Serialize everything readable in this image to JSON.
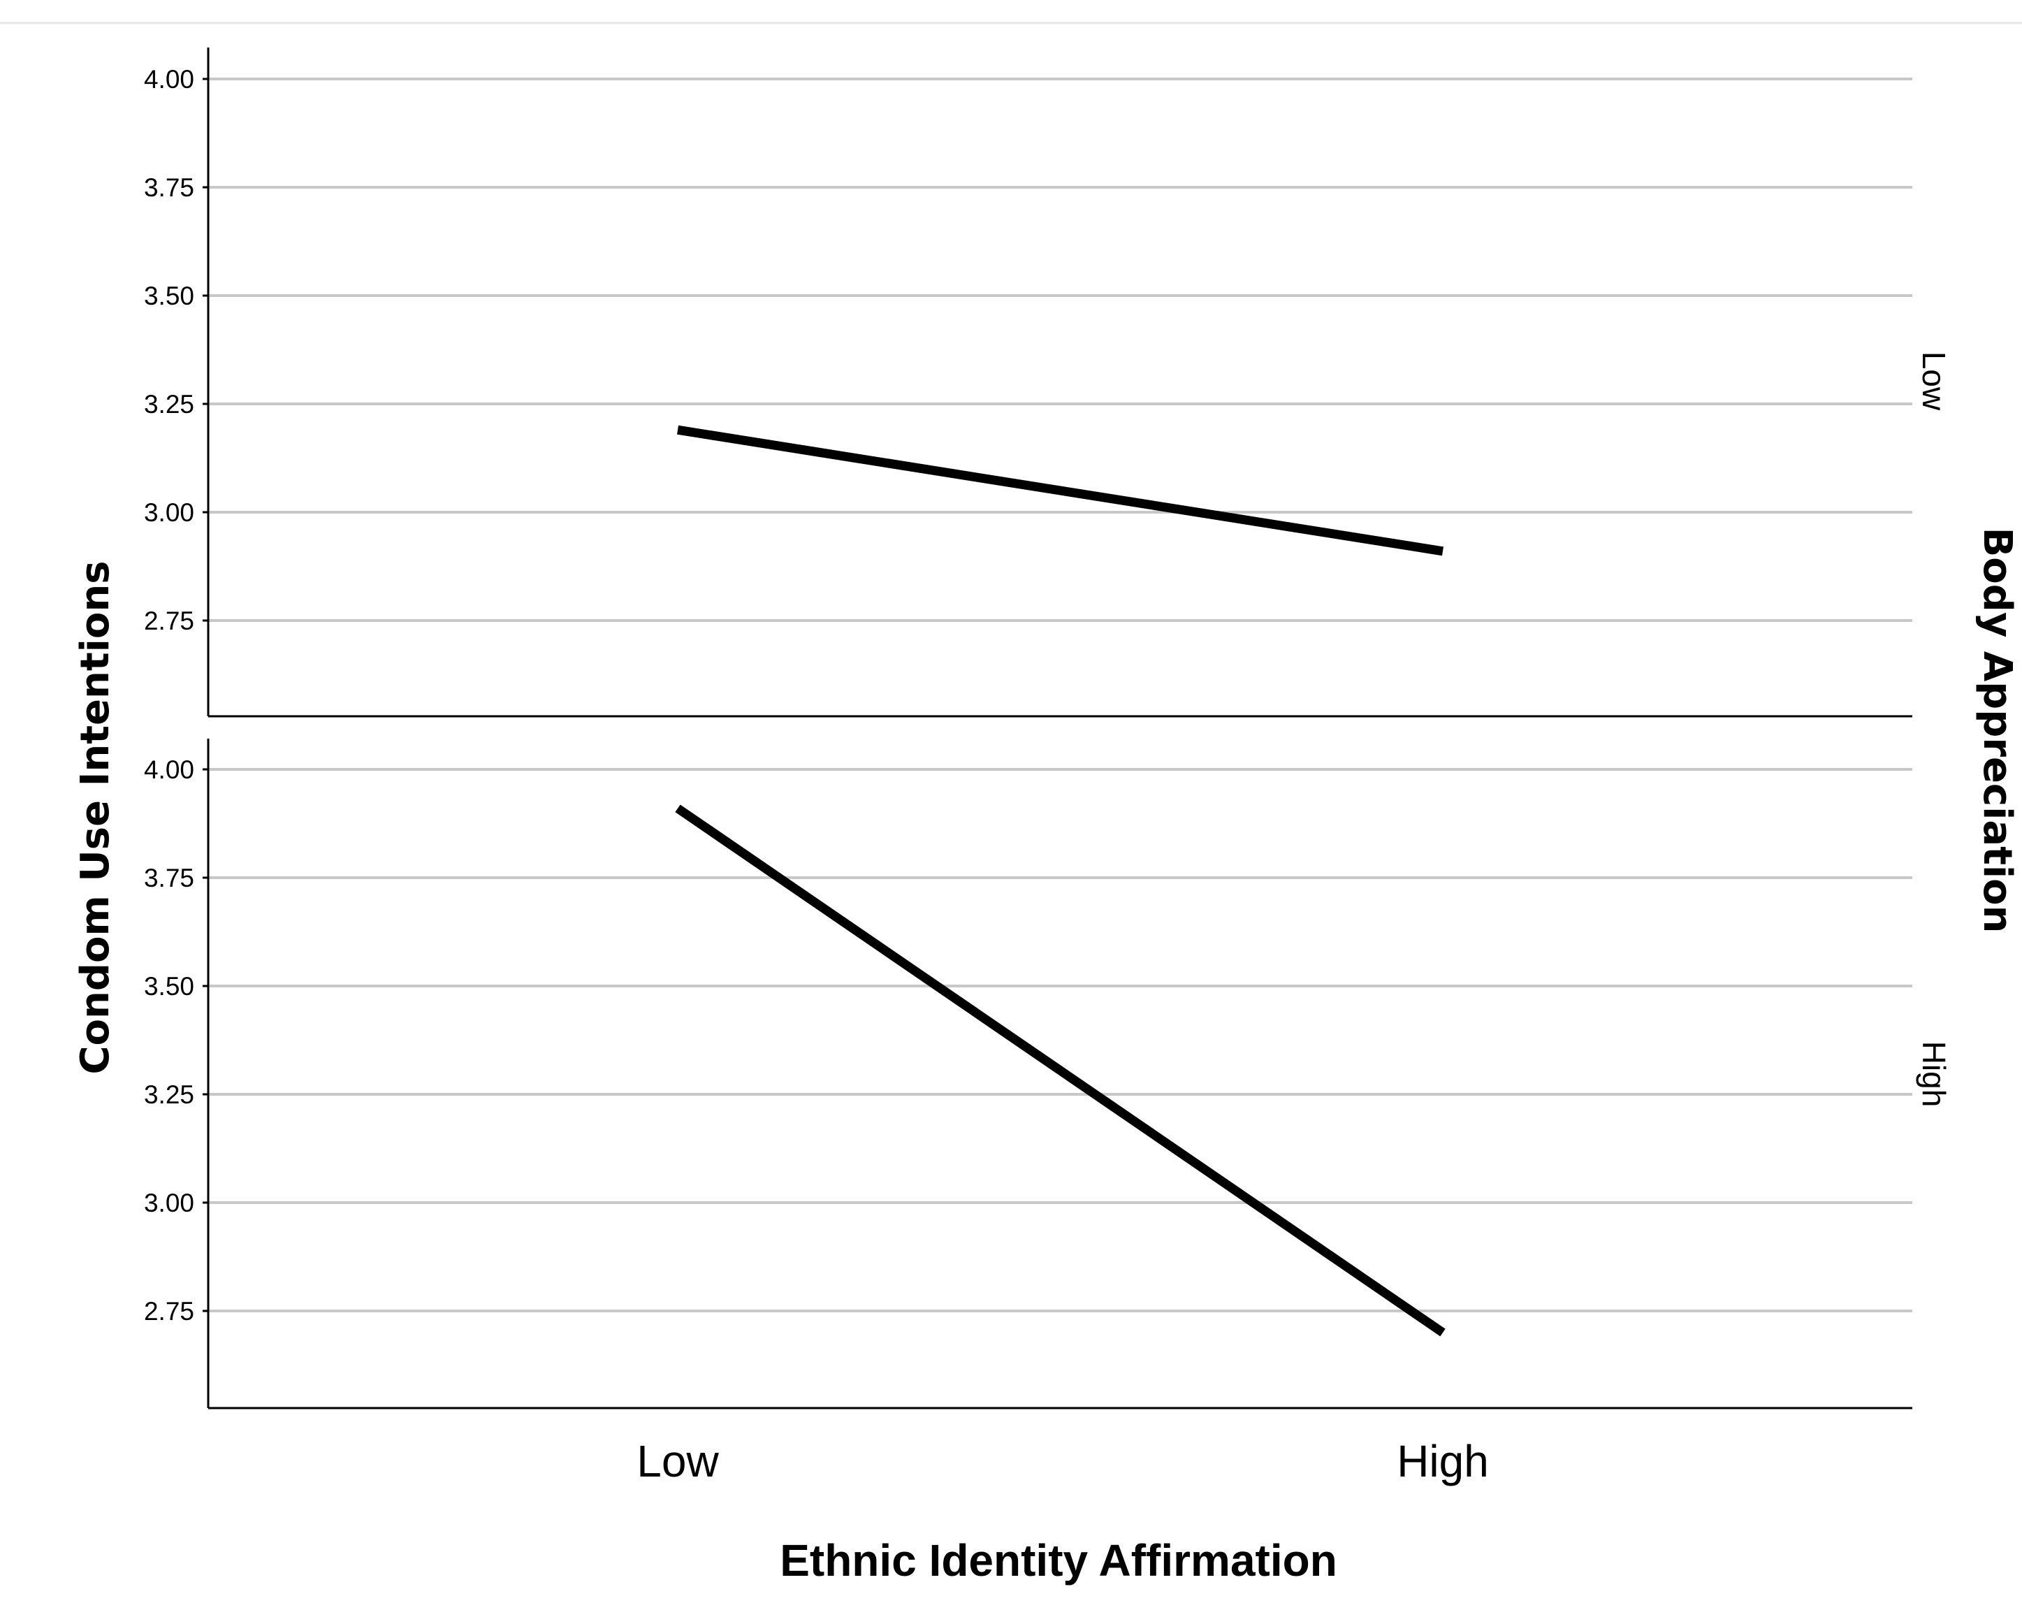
{
  "chart_data": {
    "type": "line",
    "xlabel": "Ethnic Identity Affirmation",
    "ylabel": "Condom Use Intentions",
    "facet_label": "Body Appreciation",
    "categories": [
      "Low",
      "High"
    ],
    "yticks": [
      "2.75",
      "3.00",
      "3.25",
      "3.50",
      "3.75",
      "4.00"
    ],
    "ylim": [
      2.5,
      4.07
    ],
    "grid": true,
    "line_color": "#000000",
    "panels": [
      {
        "label": "Low",
        "series": [
          {
            "values": [
              3.19,
              2.91
            ]
          }
        ]
      },
      {
        "label": "High",
        "series": [
          {
            "values": [
              3.91,
              2.7
            ]
          }
        ]
      }
    ]
  }
}
